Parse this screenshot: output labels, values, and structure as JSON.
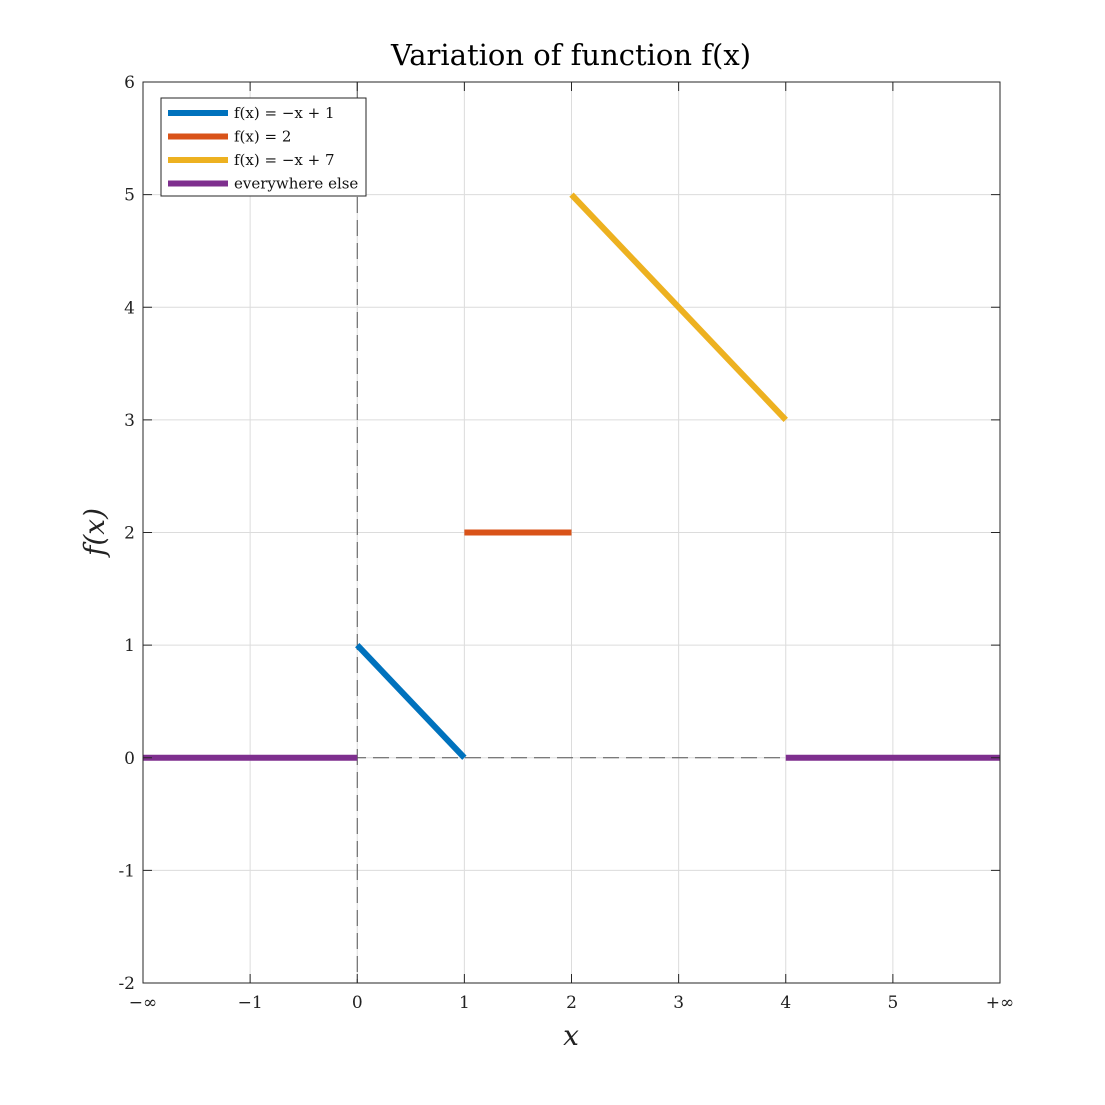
{
  "chart_data": {
    "type": "line",
    "title": "Variation of function f(x)",
    "xlabel": "x",
    "ylabel": "f(x)",
    "xlim": [
      -2,
      6
    ],
    "ylim": [
      -2,
      6
    ],
    "x_ticks": [
      {
        "value": -2,
        "label": "−∞"
      },
      {
        "value": -1,
        "label": "−1"
      },
      {
        "value": 0,
        "label": "0"
      },
      {
        "value": 1,
        "label": "1"
      },
      {
        "value": 2,
        "label": "2"
      },
      {
        "value": 3,
        "label": "3"
      },
      {
        "value": 4,
        "label": "4"
      },
      {
        "value": 5,
        "label": "5"
      },
      {
        "value": 6,
        "label": "+∞"
      }
    ],
    "y_ticks": [
      {
        "value": -2,
        "label": "-2"
      },
      {
        "value": -1,
        "label": "-1"
      },
      {
        "value": 0,
        "label": "0"
      },
      {
        "value": 1,
        "label": "1"
      },
      {
        "value": 2,
        "label": "2"
      },
      {
        "value": 3,
        "label": "3"
      },
      {
        "value": 4,
        "label": "4"
      },
      {
        "value": 5,
        "label": "5"
      },
      {
        "value": 6,
        "label": "6"
      }
    ],
    "grid": true,
    "legend_position": "top-left",
    "series": [
      {
        "name": "f(x) = −x + 1",
        "color": "#0072BD",
        "segments": [
          [
            [
              0,
              1
            ],
            [
              1,
              0
            ]
          ]
        ]
      },
      {
        "name": "f(x) = 2",
        "color": "#D95319",
        "segments": [
          [
            [
              1,
              2
            ],
            [
              2,
              2
            ]
          ]
        ]
      },
      {
        "name": "f(x) = −x + 7",
        "color": "#EDB120",
        "segments": [
          [
            [
              2,
              5
            ],
            [
              4,
              3
            ]
          ]
        ]
      },
      {
        "name": "everywhere else",
        "color": "#7E2F8E",
        "segments": [
          [
            [
              -2,
              0
            ],
            [
              0,
              0
            ]
          ],
          [
            [
              4,
              0
            ],
            [
              6,
              0
            ]
          ]
        ]
      }
    ],
    "reference_lines": [
      {
        "orientation": "vertical",
        "value": 0,
        "style": "dashed"
      },
      {
        "orientation": "horizontal",
        "value": 0,
        "style": "dashed"
      }
    ]
  }
}
